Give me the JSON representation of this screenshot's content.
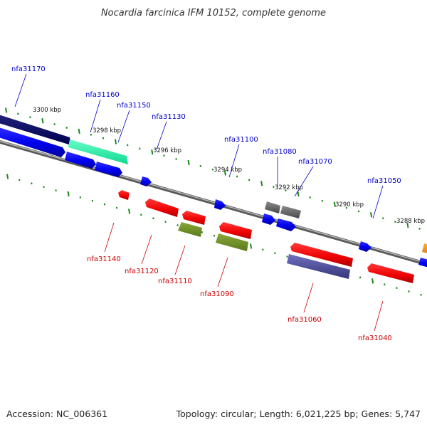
{
  "title": "Nocardia farcinica IFM 10152, complete genome",
  "footer": {
    "accession": "Accession: NC_006361",
    "summary": "Topology: circular; Length: 6,021,225 bp; Genes: 5,747"
  },
  "kbp_ticks": [
    "3300 kbp",
    "3298 kbp",
    "3296 kbp",
    "3294 kbp",
    "3292 kbp",
    "3290 kbp",
    "3288 kbp"
  ],
  "gene_labels_forward": [
    "nfa31170",
    "nfa31160",
    "nfa31150",
    "nfa31130",
    "nfa31100",
    "nfa31080",
    "nfa31070",
    "nfa31050"
  ],
  "gene_labels_reverse": [
    "nfa31140",
    "nfa31120",
    "nfa31110",
    "nfa31090",
    "nfa31060",
    "nfa31040"
  ],
  "colors": {
    "backbone": "#7a7a7a",
    "ticks": "#1a8a1a",
    "label_forward": "#0000cc",
    "label_reverse": "#cc0000"
  }
}
